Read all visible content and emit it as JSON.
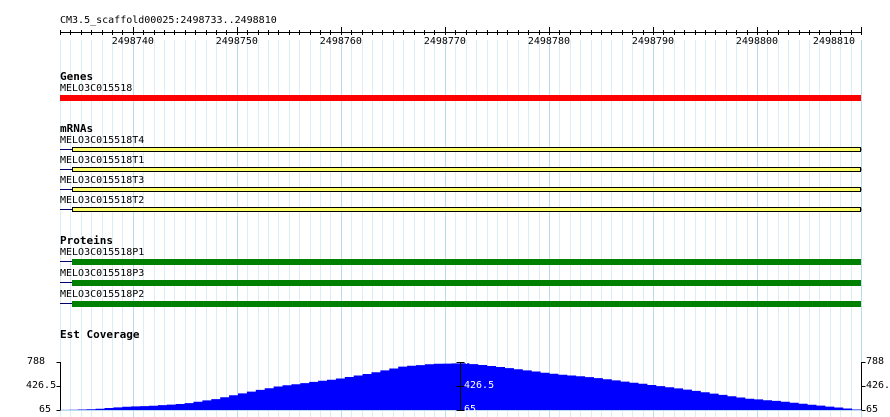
{
  "ruler": {
    "location": "CM3.5_scaffold00025:2498733..2498810",
    "start": 2498733,
    "end": 2498810,
    "ticks": [
      "2498740",
      "2498750",
      "2498760",
      "2498770",
      "2498780",
      "2498790",
      "2498800",
      "2498810"
    ]
  },
  "tracks": {
    "genes": {
      "title": "Genes",
      "color": "#ff0000",
      "features": [
        "MELO3C015518"
      ]
    },
    "mrnas": {
      "title": "mRNAs",
      "color": "#ffff66",
      "features": [
        "MELO3C015518T4",
        "MELO3C015518T1",
        "MELO3C015518T3",
        "MELO3C015518T2"
      ]
    },
    "proteins": {
      "title": "Proteins",
      "color": "#008000",
      "features": [
        "MELO3C015518P1",
        "MELO3C015518P3",
        "MELO3C015518P2"
      ]
    },
    "coverage": {
      "title": "Est Coverage",
      "color": "#0000ff",
      "y_labels": [
        "788",
        "426.5",
        "65"
      ],
      "ylim": [
        65,
        788
      ]
    }
  },
  "chart_data": {
    "type": "area",
    "title": "Est Coverage",
    "x": [
      2498733,
      2498736,
      2498739,
      2498742,
      2498745,
      2498748,
      2498751,
      2498754,
      2498757,
      2498760,
      2498763,
      2498766,
      2498769,
      2498772,
      2498775,
      2498778,
      2498781,
      2498784,
      2498787,
      2498790,
      2498793,
      2498796,
      2498799,
      2498802,
      2498805,
      2498808,
      2498810
    ],
    "values": [
      65,
      75,
      110,
      130,
      160,
      230,
      330,
      420,
      480,
      540,
      620,
      720,
      760,
      770,
      720,
      660,
      600,
      560,
      500,
      440,
      380,
      310,
      240,
      200,
      150,
      100,
      65
    ],
    "ylim": [
      65,
      788
    ],
    "xlabel": "",
    "ylabel": ""
  }
}
